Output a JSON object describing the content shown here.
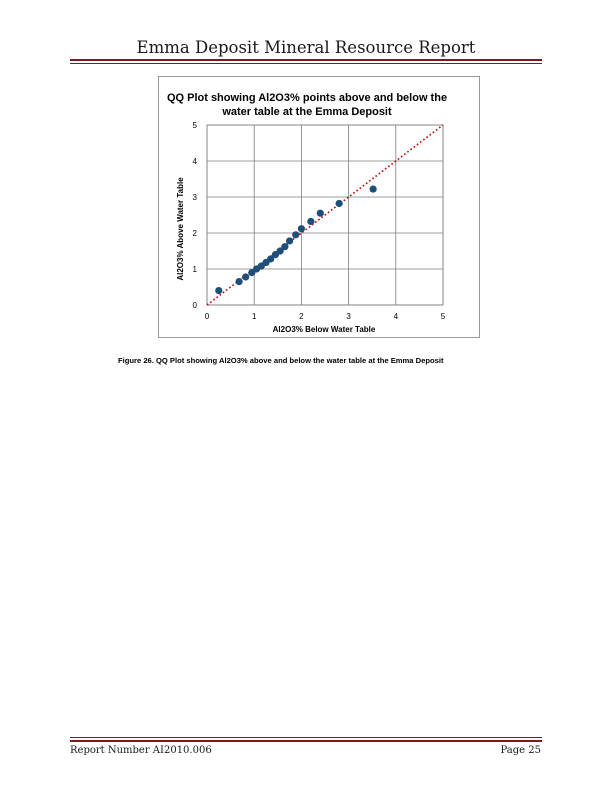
{
  "header": {
    "title": "Emma Deposit Mineral Resource Report"
  },
  "colors": {
    "rule": "#7b1a1a",
    "marker": "#1f4e79",
    "reference_line": "#c00000",
    "grid": "#7f7f7f"
  },
  "chart_data": {
    "type": "scatter",
    "title_lines": [
      "QQ Plot showing Al2O3% points above and below the",
      "water table at the Emma Deposit"
    ],
    "xlabel": "Al2O3% Below Water Table",
    "ylabel": "Al2O3% Above Water Table",
    "xlim": [
      0,
      5
    ],
    "ylim": [
      0,
      5
    ],
    "xticks": [
      0,
      1,
      2,
      3,
      4,
      5
    ],
    "yticks": [
      0,
      1,
      2,
      3,
      4,
      5
    ],
    "grid": true,
    "reference_line": {
      "style": "dotted",
      "x": [
        0,
        5
      ],
      "y": [
        0,
        5
      ]
    },
    "points": [
      {
        "x": 0.25,
        "y": 0.4
      },
      {
        "x": 0.68,
        "y": 0.65
      },
      {
        "x": 0.82,
        "y": 0.78
      },
      {
        "x": 0.95,
        "y": 0.9
      },
      {
        "x": 1.05,
        "y": 1.0
      },
      {
        "x": 1.15,
        "y": 1.08
      },
      {
        "x": 1.25,
        "y": 1.18
      },
      {
        "x": 1.35,
        "y": 1.28
      },
      {
        "x": 1.45,
        "y": 1.4
      },
      {
        "x": 1.55,
        "y": 1.5
      },
      {
        "x": 1.65,
        "y": 1.62
      },
      {
        "x": 1.75,
        "y": 1.78
      },
      {
        "x": 1.88,
        "y": 1.95
      },
      {
        "x": 2.0,
        "y": 2.12
      },
      {
        "x": 2.2,
        "y": 2.32
      },
      {
        "x": 2.4,
        "y": 2.55
      },
      {
        "x": 2.8,
        "y": 2.82
      },
      {
        "x": 3.52,
        "y": 3.22
      }
    ]
  },
  "caption": "Figure 26. QQ Plot showing Al2O3% above and below the water table at the Emma Deposit",
  "footer": {
    "report_number": "Report Number AI2010.006",
    "page": "Page 25"
  }
}
